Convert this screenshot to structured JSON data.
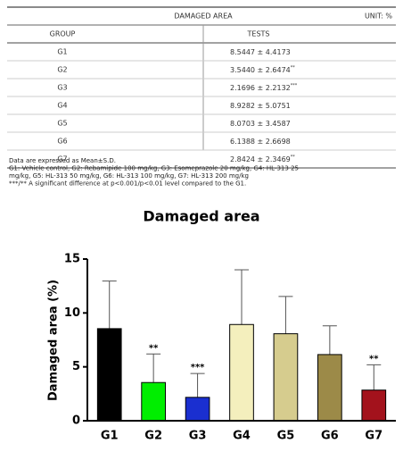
{
  "table": {
    "title": "DAMAGED AREA",
    "unit": "UNIT: %",
    "columns": [
      "GROUP",
      "TESTS"
    ],
    "rows": [
      [
        {
          "text": "G1"
        },
        {
          "text": "8.5447 ± 4.4173"
        }
      ],
      [
        {
          "text": "G2"
        },
        {
          "text": "3.5440 ± 2.6474",
          "sup": "**"
        }
      ],
      [
        {
          "text": "G3"
        },
        {
          "text": "2.1696 ± 2.2132",
          "sup": "***"
        }
      ],
      [
        {
          "text": "G4"
        },
        {
          "text": "8.9282 ± 5.0751"
        }
      ],
      [
        {
          "text": "G5"
        },
        {
          "text": "8.0703 ± 3.4587"
        }
      ],
      [
        {
          "text": "G6"
        },
        {
          "text": "6.1388 ± 2.6698"
        }
      ],
      [
        {
          "text": "G7"
        },
        {
          "text": "2.8424 ± 2.3469",
          "sup": "**"
        }
      ]
    ]
  },
  "notes": [
    "Data are expressed as Mean±S.D.",
    "G1: Vehicle control, G2: Rebamipide 100 mg/kg, G3: Esomeprazole 20 mg/kg, G4: HL-313 25",
    "mg/kg, G5: HL-313 50 mg/kg, G6: HL-313 100 mg/kg, G7: HL-313 200 mg/kg",
    "***/** A significant difference at p<0.001/p<0.01 level compared to the G1."
  ],
  "chart_data": {
    "type": "bar",
    "title": "Damaged area",
    "y_label": "Damaged area (%)",
    "categories": [
      "G1",
      "G2",
      "G3",
      "G4",
      "G5",
      "G6",
      "G7"
    ],
    "values": [
      8.5447,
      3.544,
      2.1696,
      8.9282,
      8.0703,
      6.1388,
      2.8424
    ],
    "errors": [
      4.4173,
      2.6474,
      2.2132,
      5.0751,
      3.4587,
      2.6698,
      2.3469
    ],
    "colors": [
      "#000000",
      "#00ee00",
      "#1a2fd0",
      "#f4efbd",
      "#d6cc8e",
      "#9c8a48",
      "#a3121c"
    ],
    "annotations": [
      null,
      "**",
      "***",
      null,
      null,
      null,
      "**"
    ],
    "ylim": [
      0,
      15
    ],
    "yticks": [
      0,
      5,
      10,
      15
    ]
  }
}
